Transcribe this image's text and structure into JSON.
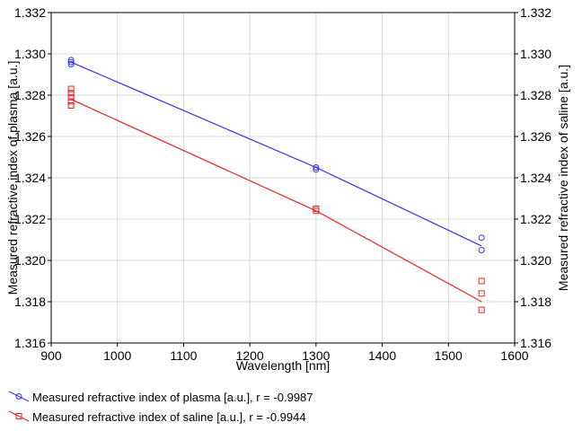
{
  "chart_data": {
    "type": "scatter",
    "xlabel": "Wavelength [nm]",
    "ylabel_left": "Measured refractive index of plasma [a.u.]",
    "ylabel_right": "Measured refractive index of saline [a.u.]",
    "xlim": [
      900,
      1600
    ],
    "ylim": [
      1.316,
      1.332
    ],
    "xticks": [
      "900",
      "1000",
      "1100",
      "1200",
      "1300",
      "1400",
      "1500",
      "1600"
    ],
    "yticks": [
      "1.316",
      "1.318",
      "1.320",
      "1.322",
      "1.324",
      "1.326",
      "1.328",
      "1.330",
      "1.332"
    ],
    "grid": true,
    "series": [
      {
        "name": "Measured refractive index of plasma [a.u.],  r = -0.9987",
        "color": "#3333ee",
        "marker": "circle",
        "points": [
          [
            930,
            1.3297
          ],
          [
            930,
            1.3296
          ],
          [
            930,
            1.3295
          ],
          [
            1300,
            1.3245
          ],
          [
            1300,
            1.3244
          ],
          [
            1550,
            1.3211
          ],
          [
            1550,
            1.3205
          ]
        ],
        "fit": [
          [
            930,
            1.3296
          ],
          [
            1300,
            1.3245
          ],
          [
            1550,
            1.3207
          ]
        ]
      },
      {
        "name": "Measured refractive index of saline [a.u.],  r = -0.9944",
        "color": "#ee2222",
        "marker": "square",
        "points": [
          [
            930,
            1.3283
          ],
          [
            930,
            1.3281
          ],
          [
            930,
            1.3279
          ],
          [
            930,
            1.3277
          ],
          [
            930,
            1.3275
          ],
          [
            1300,
            1.3225
          ],
          [
            1300,
            1.3224
          ],
          [
            1550,
            1.319
          ],
          [
            1550,
            1.3184
          ],
          [
            1550,
            1.3176
          ]
        ],
        "fit": [
          [
            930,
            1.3278
          ],
          [
            1300,
            1.3224
          ],
          [
            1550,
            1.318
          ]
        ]
      }
    ]
  }
}
